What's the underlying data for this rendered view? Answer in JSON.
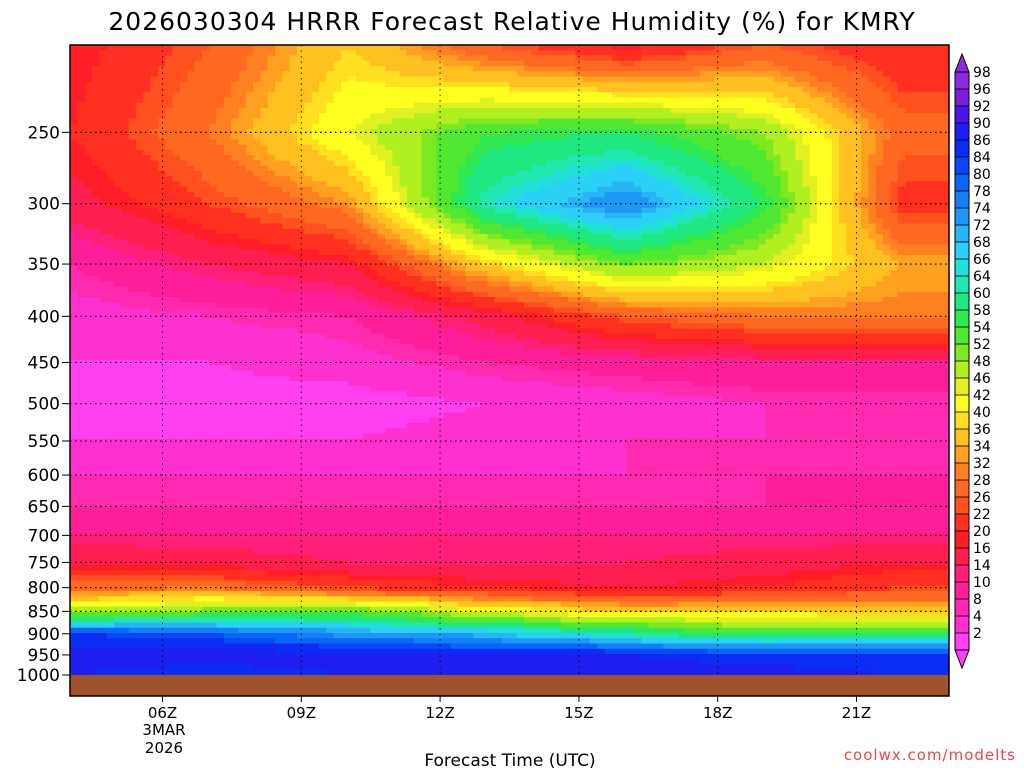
{
  "chart_data": {
    "type": "heatmap",
    "title": "2026030304 HRRR Forecast Relative Humidity (%) for KMRY",
    "xlabel": "Forecast Time (UTC)",
    "ylabel": "",
    "credit": "coolwx.com/modelts",
    "x_ticks": [
      "06Z",
      "09Z",
      "12Z",
      "15Z",
      "18Z",
      "21Z"
    ],
    "x_date_lines": [
      "3MAR",
      "2026"
    ],
    "x_range_hours_utc": [
      4,
      23
    ],
    "y_ticks": [
      "250",
      "300",
      "350",
      "400",
      "450",
      "500",
      "550",
      "600",
      "650",
      "700",
      "750",
      "800",
      "850",
      "900",
      "950",
      "1000"
    ],
    "y_range_hpa": [
      200,
      1000
    ],
    "grid": true,
    "colorbar": {
      "placement": "right",
      "labels": [
        "98",
        "96",
        "92",
        "90",
        "86",
        "84",
        "80",
        "78",
        "74",
        "72",
        "68",
        "66",
        "64",
        "60",
        "58",
        "54",
        "52",
        "48",
        "46",
        "42",
        "40",
        "36",
        "34",
        "32",
        "28",
        "26",
        "22",
        "20",
        "16",
        "14",
        "10",
        "8",
        "4",
        "2"
      ],
      "colors": [
        "#8a2be2",
        "#7b1fd6",
        "#4a16e8",
        "#1e1ef0",
        "#0a2cf5",
        "#0a48f5",
        "#0a66f5",
        "#1480f5",
        "#1e98f5",
        "#28b4f5",
        "#2ad0f5",
        "#20e0d8",
        "#20e8b0",
        "#20e880",
        "#30e850",
        "#50e830",
        "#80e820",
        "#b0f020",
        "#e0f020",
        "#ffff20",
        "#ffe020",
        "#ffc020",
        "#ffa020",
        "#ff8020",
        "#ff6820",
        "#ff5020",
        "#ff3020",
        "#ff1e28",
        "#ff1e50",
        "#ff1e78",
        "#ff1e9a",
        "#ff2ab0",
        "#ff30d0",
        "#ff40f0"
      ]
    },
    "rh_cross_section": {
      "hours_utc": [
        4,
        7,
        10,
        13,
        16,
        19,
        22
      ],
      "levels_hpa": [
        200,
        250,
        300,
        350,
        400,
        450,
        500,
        550,
        600,
        650,
        700,
        750,
        800,
        850,
        900,
        950,
        1000
      ],
      "values_pct": [
        [
          20,
          28,
          40,
          28,
          20,
          28,
          22
        ],
        [
          22,
          32,
          46,
          58,
          60,
          52,
          30
        ],
        [
          18,
          26,
          34,
          66,
          78,
          60,
          24
        ],
        [
          10,
          16,
          20,
          40,
          54,
          48,
          36
        ],
        [
          6,
          8,
          10,
          18,
          28,
          32,
          32
        ],
        [
          4,
          4,
          6,
          10,
          12,
          14,
          14
        ],
        [
          2,
          2,
          2,
          4,
          6,
          8,
          8
        ],
        [
          4,
          4,
          4,
          6,
          8,
          8,
          8
        ],
        [
          8,
          8,
          8,
          8,
          8,
          10,
          10
        ],
        [
          10,
          10,
          10,
          10,
          10,
          10,
          12
        ],
        [
          14,
          14,
          14,
          14,
          14,
          14,
          14
        ],
        [
          20,
          18,
          16,
          16,
          16,
          18,
          20
        ],
        [
          30,
          32,
          26,
          22,
          20,
          22,
          26
        ],
        [
          50,
          54,
          56,
          46,
          40,
          40,
          38
        ],
        [
          86,
          84,
          76,
          72,
          64,
          58,
          60
        ],
        [
          92,
          92,
          92,
          92,
          90,
          88,
          86
        ],
        [
          90,
          88,
          90,
          92,
          92,
          92,
          90
        ]
      ]
    }
  }
}
